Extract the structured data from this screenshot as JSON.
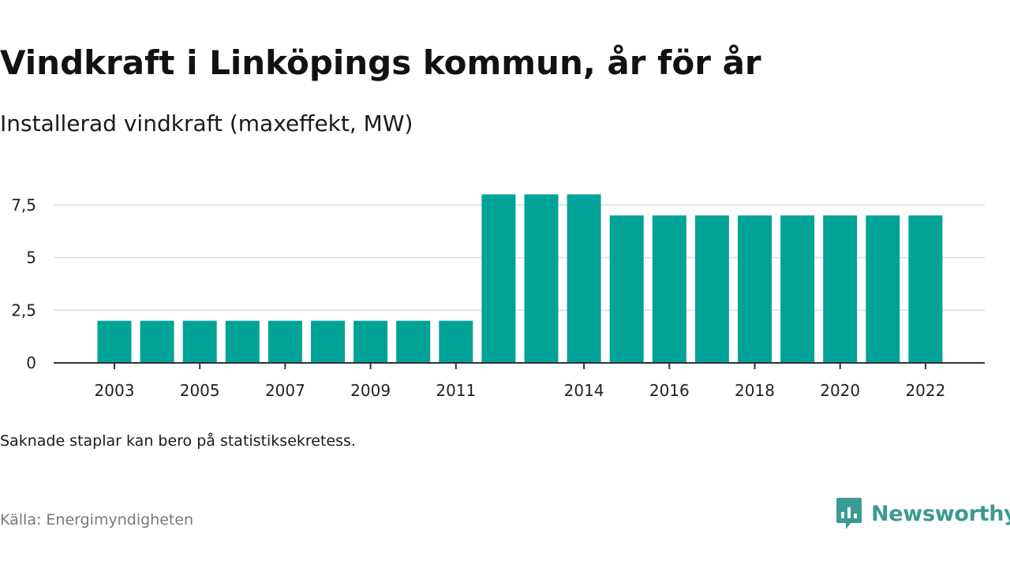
{
  "title": "Vindkraft i Linköpings kommun, år för år",
  "subtitle": "Installerad vindkraft (maxeffekt, MW)",
  "note": "Saknade staplar kan bero på statistiksekretess.",
  "source": "Källa: Energimyndigheten",
  "brand": {
    "name": "Newsworthy",
    "icon": "newsworthy-bar-chart-icon",
    "color": "#3b9a92"
  },
  "chart_data": {
    "type": "bar",
    "categories": [
      "2003",
      "2004",
      "2005",
      "2006",
      "2007",
      "2008",
      "2009",
      "2010",
      "2011",
      "2012",
      "2013",
      "2014",
      "2015",
      "2016",
      "2017",
      "2018",
      "2019",
      "2020",
      "2021",
      "2022"
    ],
    "values": [
      2,
      2,
      2,
      2,
      2,
      2,
      2,
      2,
      2,
      8,
      8,
      8,
      7,
      7,
      7,
      7,
      7,
      7,
      7,
      7
    ],
    "x_tick_labels": [
      "2003",
      "2005",
      "2007",
      "2009",
      "2011",
      "2014",
      "2016",
      "2018",
      "2020",
      "2022"
    ],
    "y_ticks": [
      0,
      2.5,
      5,
      7.5
    ],
    "y_tick_labels": [
      "0",
      "2,5",
      "5",
      "7,5"
    ],
    "ylim": [
      0,
      8
    ],
    "grid": true,
    "xlabel": "",
    "ylabel": "",
    "bar_color": "#00a398"
  }
}
